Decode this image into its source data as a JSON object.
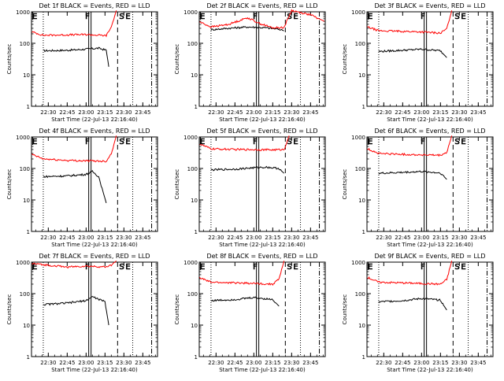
{
  "figure": {
    "ylabel": "Counts/sec",
    "xlabel": "Start Time (22-Jul-13 22:16:40)"
  },
  "chart_data": [
    {
      "type": "line",
      "title": "Det 1f BLACK = Events, RED = LLD",
      "ylabel": "Counts/sec",
      "xlabel": "Start Time (22-Jul-13 22:16:40)",
      "yscale": "log",
      "ylim": [
        1,
        1000
      ],
      "yticks": [
        "1",
        "10",
        "100",
        "1000"
      ],
      "xticks": [
        "22:30",
        "22:45",
        "23:00",
        "23:15",
        "23:30",
        "23:45"
      ],
      "xlim": [
        "22:16:40",
        "23:56:40"
      ],
      "markers": {
        "E": "22:17",
        "F": "23:03",
        "S": "23:30",
        "E2": "23:30"
      },
      "series": [
        {
          "name": "Events",
          "color": "#000000",
          "x": [
            "22:26",
            "22:45",
            "23:00",
            "23:10",
            "23:16",
            "23:18"
          ],
          "values": [
            58,
            60,
            65,
            70,
            60,
            18
          ]
        },
        {
          "name": "LLD",
          "color": "#ff0000",
          "x": [
            "22:17",
            "22:26",
            "22:45",
            "23:00",
            "23:16",
            "23:20",
            "23:24"
          ],
          "values": [
            230,
            180,
            185,
            190,
            175,
            330,
            1100
          ]
        }
      ]
    },
    {
      "type": "line",
      "title": "Det 2f BLACK = Events, RED = LLD",
      "ylabel": "Counts/sec",
      "xlabel": "Start Time (22-Jul-13 22:16:40)",
      "yscale": "log",
      "ylim": [
        1,
        1000
      ],
      "yticks": [
        "1",
        "10",
        "100",
        "1000"
      ],
      "xticks": [
        "22:30",
        "22:45",
        "23:00",
        "23:15",
        "23:30",
        "23:45"
      ],
      "xlim": [
        "22:16:40",
        "23:56:40"
      ],
      "markers": {
        "E": "22:17",
        "F": "23:03",
        "S": "23:30",
        "E2": "23:30"
      },
      "series": [
        {
          "name": "Events",
          "color": "#000000",
          "x": [
            "22:26",
            "22:40",
            "22:55",
            "23:10",
            "23:20",
            "23:24"
          ],
          "values": [
            270,
            300,
            330,
            310,
            280,
            250
          ]
        },
        {
          "name": "LLD",
          "color": "#ff0000",
          "x": [
            "22:17",
            "22:26",
            "22:40",
            "22:55",
            "23:05",
            "23:15",
            "23:24",
            "23:30",
            "23:45",
            "23:56"
          ],
          "values": [
            480,
            330,
            400,
            650,
            420,
            310,
            320,
            1100,
            800,
            500
          ]
        }
      ]
    },
    {
      "type": "line",
      "title": "Det 3f BLACK = Events, RED = LLD",
      "ylabel": "Counts/sec",
      "xlabel": "Start Time (22-Jul-13 22:16:40)",
      "yscale": "log",
      "ylim": [
        1,
        1000
      ],
      "yticks": [
        "1",
        "10",
        "100",
        "1000"
      ],
      "xticks": [
        "22:30",
        "22:45",
        "23:00",
        "23:15",
        "23:30",
        "23:45"
      ],
      "xlim": [
        "22:16:40",
        "23:56:40"
      ],
      "markers": {
        "E": "22:17",
        "F": "23:03",
        "S": "23:30",
        "E2": "23:30"
      },
      "series": [
        {
          "name": "Events",
          "color": "#000000",
          "x": [
            "22:26",
            "22:45",
            "23:00",
            "23:15",
            "23:20"
          ],
          "values": [
            55,
            60,
            65,
            58,
            35
          ]
        },
        {
          "name": "LLD",
          "color": "#ff0000",
          "x": [
            "22:17",
            "22:26",
            "22:45",
            "23:00",
            "23:15",
            "23:20",
            "23:24"
          ],
          "values": [
            330,
            250,
            240,
            230,
            210,
            290,
            1100
          ]
        }
      ]
    },
    {
      "type": "line",
      "title": "Det 4f BLACK = Events, RED = LLD",
      "ylabel": "Counts/sec",
      "xlabel": "Start Time (22-Jul-13 22:16:40)",
      "yscale": "log",
      "ylim": [
        1,
        1000
      ],
      "yticks": [
        "1",
        "10",
        "100",
        "1000"
      ],
      "xticks": [
        "22:30",
        "22:45",
        "23:00",
        "23:15",
        "23:30",
        "23:45"
      ],
      "xlim": [
        "22:16:40",
        "23:56:40"
      ],
      "markers": {
        "E": "22:17",
        "F": "23:03",
        "S": "23:30",
        "E2": "23:30"
      },
      "series": [
        {
          "name": "Events",
          "color": "#000000",
          "x": [
            "22:26",
            "22:45",
            "23:00",
            "23:05",
            "23:10",
            "23:16"
          ],
          "values": [
            55,
            58,
            65,
            80,
            55,
            8
          ]
        },
        {
          "name": "LLD",
          "color": "#ff0000",
          "x": [
            "22:17",
            "22:26",
            "22:45",
            "23:00",
            "23:16",
            "23:20",
            "23:24"
          ],
          "values": [
            280,
            200,
            180,
            175,
            170,
            300,
            1100
          ]
        }
      ]
    },
    {
      "type": "line",
      "title": "Det 5f BLACK = Events, RED = LLD",
      "ylabel": "Counts/sec",
      "xlabel": "Start Time (22-Jul-13 22:16:40)",
      "yscale": "log",
      "ylim": [
        1,
        1000
      ],
      "yticks": [
        "1",
        "10",
        "100",
        "1000"
      ],
      "xticks": [
        "22:30",
        "22:45",
        "23:00",
        "23:15",
        "23:30",
        "23:45"
      ],
      "xlim": [
        "22:16:40",
        "23:56:40"
      ],
      "markers": {
        "E": "22:17",
        "F": "23:03",
        "S": "23:30",
        "E2": "23:30"
      },
      "series": [
        {
          "name": "Events",
          "color": "#000000",
          "x": [
            "22:26",
            "22:45",
            "23:00",
            "23:10",
            "23:20",
            "23:24"
          ],
          "values": [
            90,
            95,
            105,
            110,
            100,
            70
          ]
        },
        {
          "name": "LLD",
          "color": "#ff0000",
          "x": [
            "22:17",
            "22:26",
            "22:45",
            "23:00",
            "23:15",
            "23:24",
            "23:28"
          ],
          "values": [
            600,
            420,
            400,
            400,
            390,
            400,
            1100
          ]
        }
      ]
    },
    {
      "type": "line",
      "title": "Det 6f BLACK = Events, RED = LLD",
      "ylabel": "Counts/sec",
      "xlabel": "Start Time (22-Jul-13 22:16:40)",
      "yscale": "log",
      "ylim": [
        1,
        1000
      ],
      "yticks": [
        "1",
        "10",
        "100",
        "1000"
      ],
      "xticks": [
        "22:30",
        "22:45",
        "23:00",
        "23:15",
        "23:30",
        "23:45"
      ],
      "xlim": [
        "22:16:40",
        "23:56:40"
      ],
      "markers": {
        "E": "22:17",
        "F": "23:03",
        "S": "23:30",
        "E2": "23:30"
      },
      "series": [
        {
          "name": "Events",
          "color": "#000000",
          "x": [
            "22:26",
            "22:45",
            "23:00",
            "23:15",
            "23:20"
          ],
          "values": [
            70,
            75,
            80,
            72,
            45
          ]
        },
        {
          "name": "LLD",
          "color": "#ff0000",
          "x": [
            "22:17",
            "22:26",
            "22:45",
            "23:00",
            "23:15",
            "23:20",
            "23:24"
          ],
          "values": [
            420,
            300,
            280,
            270,
            260,
            320,
            1100
          ]
        }
      ]
    },
    {
      "type": "line",
      "title": "Det 7f BLACK = Events, RED = LLD",
      "ylabel": "Counts/sec",
      "xlabel": "Start Time (22-Jul-13 22:16:40)",
      "yscale": "log",
      "ylim": [
        1,
        1000
      ],
      "yticks": [
        "1",
        "10",
        "100",
        "1000"
      ],
      "xticks": [
        "22:30",
        "22:45",
        "23:00",
        "23:15",
        "23:30",
        "23:45"
      ],
      "xlim": [
        "22:16:40",
        "23:56:40"
      ],
      "markers": {
        "E": "22:17",
        "F": "23:03",
        "S": "23:30",
        "E2": "23:30"
      },
      "series": [
        {
          "name": "Events",
          "color": "#000000",
          "x": [
            "22:26",
            "22:45",
            "23:00",
            "23:05",
            "23:15",
            "23:18"
          ],
          "values": [
            45,
            50,
            60,
            80,
            55,
            10
          ]
        },
        {
          "name": "LLD",
          "color": "#ff0000",
          "x": [
            "22:17",
            "22:30",
            "22:45",
            "23:00",
            "23:15",
            "23:20",
            "23:24"
          ],
          "values": [
            900,
            800,
            700,
            750,
            700,
            800,
            1100
          ]
        }
      ]
    },
    {
      "type": "line",
      "title": "Det 8f BLACK = Events, RED = LLD",
      "ylabel": "Counts/sec",
      "xlabel": "Start Time (22-Jul-13 22:16:40)",
      "yscale": "log",
      "ylim": [
        1,
        1000
      ],
      "yticks": [
        "1",
        "10",
        "100",
        "1000"
      ],
      "xticks": [
        "22:30",
        "22:45",
        "23:00",
        "23:15",
        "23:30",
        "23:45"
      ],
      "xlim": [
        "22:16:40",
        "23:56:40"
      ],
      "markers": {
        "E": "22:17",
        "F": "23:03",
        "S": "23:30",
        "E2": "23:30"
      },
      "series": [
        {
          "name": "Events",
          "color": "#000000",
          "x": [
            "22:26",
            "22:45",
            "23:00",
            "23:15",
            "23:20"
          ],
          "values": [
            60,
            65,
            75,
            65,
            40
          ]
        },
        {
          "name": "LLD",
          "color": "#ff0000",
          "x": [
            "22:17",
            "22:26",
            "22:45",
            "23:00",
            "23:15",
            "23:20",
            "23:24"
          ],
          "values": [
            320,
            230,
            220,
            210,
            200,
            290,
            1100
          ]
        }
      ]
    },
    {
      "type": "line",
      "title": "Det 9f BLACK = Events, RED = LLD",
      "ylabel": "Counts/sec",
      "xlabel": "Start Time (22-Jul-13 22:16:40)",
      "yscale": "log",
      "ylim": [
        1,
        1000
      ],
      "yticks": [
        "1",
        "10",
        "100",
        "1000"
      ],
      "xticks": [
        "22:30",
        "22:45",
        "23:00",
        "23:15",
        "23:30",
        "23:45"
      ],
      "xlim": [
        "22:16:40",
        "23:56:40"
      ],
      "markers": {
        "E": "22:17",
        "F": "23:03",
        "S": "23:30",
        "E2": "23:30"
      },
      "series": [
        {
          "name": "Events",
          "color": "#000000",
          "x": [
            "22:26",
            "22:45",
            "23:00",
            "23:15",
            "23:20"
          ],
          "values": [
            55,
            60,
            70,
            62,
            30
          ]
        },
        {
          "name": "LLD",
          "color": "#ff0000",
          "x": [
            "22:17",
            "22:26",
            "22:45",
            "23:00",
            "23:15",
            "23:20",
            "23:24"
          ],
          "values": [
            330,
            230,
            220,
            210,
            200,
            280,
            1100
          ]
        }
      ]
    }
  ]
}
